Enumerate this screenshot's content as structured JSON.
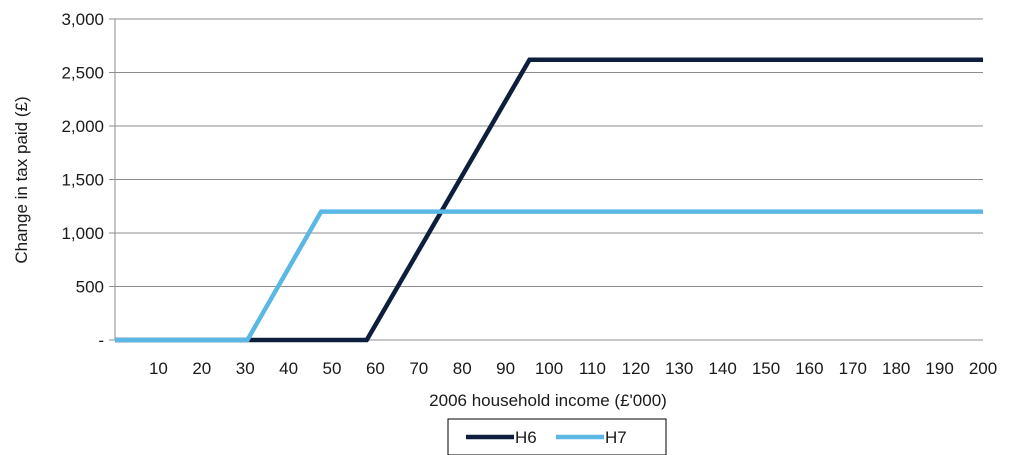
{
  "chart_data": {
    "type": "line",
    "title": "",
    "xlabel": "2006 household income (£'000)",
    "ylabel": "Change in tax paid (£)",
    "xlim": [
      0,
      200
    ],
    "ylim": [
      0,
      3000
    ],
    "grid": true,
    "legend_position": "bottom",
    "x_ticks": [
      10,
      20,
      30,
      40,
      50,
      60,
      70,
      80,
      90,
      100,
      110,
      120,
      130,
      140,
      150,
      160,
      170,
      180,
      190,
      200
    ],
    "x_tick_labels": [
      "10",
      "20",
      "30",
      "40",
      "50",
      "60",
      "70",
      "80",
      "90",
      "100",
      "110",
      "120",
      "130",
      "140",
      "150",
      "160",
      "170",
      "180",
      "190",
      "200"
    ],
    "y_ticks": [
      0,
      500,
      1000,
      1500,
      2000,
      2500,
      3000
    ],
    "y_tick_labels": [
      "-",
      "500",
      "1,000",
      "1,500",
      "2,000",
      "2,500",
      "3,000"
    ],
    "series": [
      {
        "name": "H6",
        "color": "#0d1f3c",
        "points": [
          [
            0,
            0
          ],
          [
            58,
            0
          ],
          [
            95.5,
            2620
          ],
          [
            200,
            2620
          ]
        ]
      },
      {
        "name": "H7",
        "color": "#5bb8e4",
        "points": [
          [
            0,
            0
          ],
          [
            30.5,
            0
          ],
          [
            47.5,
            1200
          ],
          [
            200,
            1200
          ]
        ]
      }
    ]
  }
}
